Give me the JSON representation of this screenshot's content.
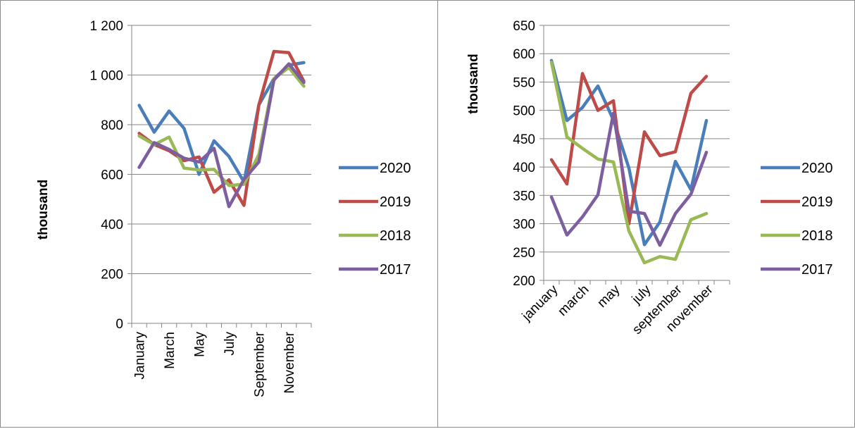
{
  "colors": {
    "2020": "#4a7ebb",
    "2019": "#be4b48",
    "2018": "#98b954",
    "2017": "#7d5fa0"
  },
  "chart_data": [
    {
      "type": "line",
      "ylabel": "thousand",
      "ylim": [
        0,
        1200
      ],
      "y_ticks": [
        "0",
        "200",
        "400",
        "600",
        "800",
        "1 000",
        "1 200"
      ],
      "categories": [
        "January",
        "February",
        "March",
        "April",
        "May",
        "June",
        "July",
        "August",
        "September",
        "October",
        "November",
        "December"
      ],
      "x_tick_labels": [
        "January",
        "",
        "March",
        "",
        "May",
        "",
        "July",
        "",
        "September",
        "",
        "November",
        ""
      ],
      "legend_position": "right",
      "series": [
        {
          "name": "2020",
          "values": [
            878,
            770,
            855,
            785,
            600,
            735,
            672,
            570,
            880,
            985,
            1040,
            1050
          ]
        },
        {
          "name": "2019",
          "values": [
            765,
            720,
            695,
            655,
            670,
            528,
            578,
            475,
            880,
            1095,
            1090,
            975
          ]
        },
        {
          "name": "2018",
          "values": [
            755,
            720,
            750,
            625,
            618,
            620,
            555,
            560,
            680,
            985,
            1030,
            955
          ]
        },
        {
          "name": "2017",
          "values": [
            628,
            728,
            700,
            665,
            650,
            705,
            470,
            580,
            650,
            980,
            1045,
            970
          ]
        }
      ]
    },
    {
      "type": "line",
      "ylabel": "thousand",
      "ylim": [
        200,
        650
      ],
      "y_ticks": [
        "200",
        "250",
        "300",
        "350",
        "400",
        "450",
        "500",
        "550",
        "600",
        "650"
      ],
      "categories": [
        "january",
        "february",
        "march",
        "april",
        "may",
        "june",
        "july",
        "august",
        "september",
        "october",
        "november",
        "december"
      ],
      "x_tick_labels": [
        "january",
        "",
        "march",
        "",
        "may",
        "",
        "july",
        "",
        "september",
        "",
        "november",
        ""
      ],
      "legend_position": "right",
      "series": [
        {
          "name": "2020",
          "values": [
            588,
            482,
            505,
            543,
            483,
            398,
            263,
            303,
            410,
            360,
            482,
            null
          ]
        },
        {
          "name": "2019",
          "values": [
            413,
            370,
            565,
            500,
            517,
            300,
            462,
            420,
            427,
            530,
            560,
            null
          ]
        },
        {
          "name": "2018",
          "values": [
            585,
            453,
            433,
            414,
            409,
            287,
            231,
            242,
            237,
            307,
            318,
            null
          ]
        },
        {
          "name": "2017",
          "values": [
            347,
            280,
            312,
            351,
            495,
            322,
            318,
            262,
            318,
            352,
            426,
            null
          ]
        }
      ]
    }
  ]
}
